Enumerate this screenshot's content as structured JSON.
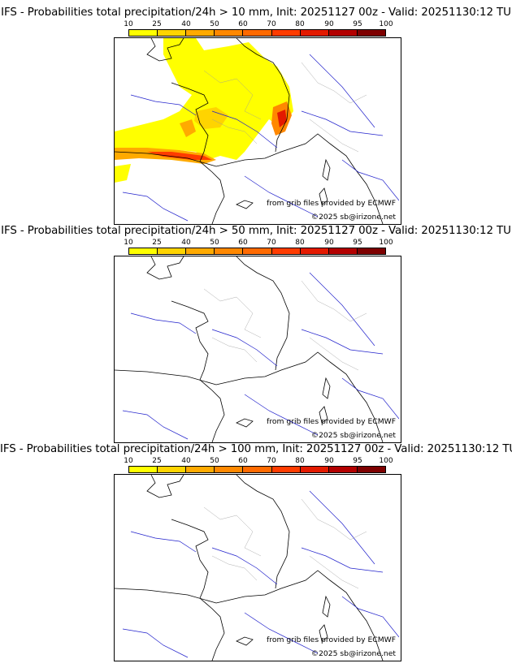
{
  "scale": {
    "ticks": [
      "10",
      "25",
      "40",
      "50",
      "60",
      "70",
      "80",
      "90",
      "95",
      "100"
    ],
    "colors": [
      "#ffff00",
      "#ffd400",
      "#ffaa00",
      "#ff8800",
      "#ff6a00",
      "#ff3c00",
      "#e31a00",
      "#b30000",
      "#7e0000"
    ]
  },
  "panels": [
    {
      "title": "IFS - Probabilities total precipitation/24h > 10 mm, Init: 20251127 00z - Valid: 20251130:12 TU",
      "credit_source": "from grib files provided by ECMWF",
      "credit_copyright": "©2025 sb@irizone.net"
    },
    {
      "title": "IFS - Probabilities total precipitation/24h > 50 mm, Init: 20251127 00z - Valid: 20251130:12 TU",
      "credit_source": "from grib files provided by ECMWF",
      "credit_copyright": "©2025 sb@irizone.net"
    },
    {
      "title": "IFS - Probabilities total precipitation/24h > 100 mm, Init: 20251127 00z - Valid: 20251130:12 TU",
      "credit_source": "from grib files provided by ECMWF",
      "credit_copyright": "©2025 sb@irizone.net"
    }
  ]
}
